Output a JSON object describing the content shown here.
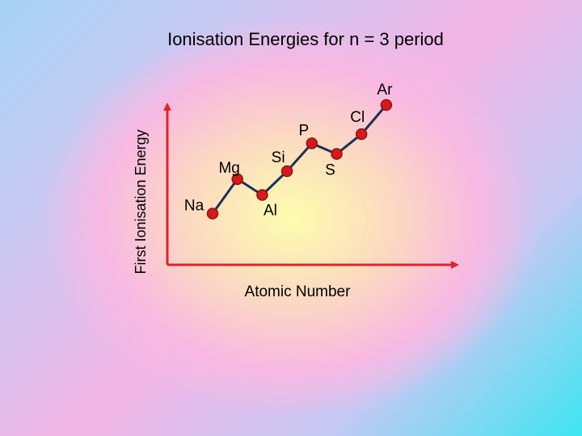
{
  "chart_data": {
    "type": "line",
    "title": "Ionisation Energies for n = 3 period",
    "xlabel": "Atomic Number",
    "ylabel": "First Ionisation Energy",
    "grid": false,
    "legend": "none",
    "ylim": [
      0,
      100
    ],
    "categories": [
      "Na",
      "Mg",
      "Al",
      "Si",
      "P",
      "S",
      "Cl",
      "Ar"
    ],
    "series": [
      {
        "values": [
          18,
          44,
          32,
          50,
          71,
          63,
          78,
          100
        ]
      }
    ],
    "colors": {
      "line": "#1f2f5c",
      "marker_fill": "#d7191c",
      "marker_outline": "#8c1417",
      "axes": "#e0242a"
    }
  }
}
